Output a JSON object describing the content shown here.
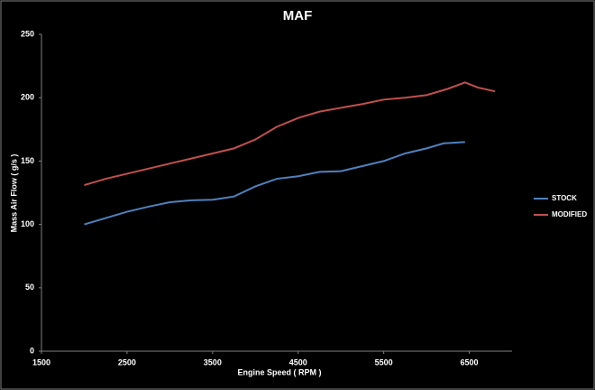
{
  "chart_data": {
    "type": "line",
    "title": "MAF",
    "x_label": "Engine Speed ( RPM )",
    "y_label": "Mass Air Flow ( g/s )",
    "xlim": [
      1500,
      7000
    ],
    "xticks": [
      1500,
      2500,
      3500,
      4500,
      5500,
      6500
    ],
    "ylim": [
      0,
      250
    ],
    "yticks": [
      0,
      50,
      100,
      150,
      200,
      250
    ],
    "legend": "right",
    "grid": false,
    "series": [
      {
        "name": "STOCK",
        "color": "#4f81bd",
        "x": [
          2000,
          2250,
          2500,
          2750,
          3000,
          3250,
          3500,
          3750,
          4000,
          4250,
          4500,
          4750,
          5000,
          5250,
          5500,
          5750,
          6000,
          6200,
          6450
        ],
        "values": [
          100,
          105,
          110,
          114,
          117.5,
          119,
          119.5,
          122,
          130,
          136,
          138,
          141.5,
          142,
          146,
          150,
          156,
          160,
          164,
          165
        ]
      },
      {
        "name": "MODIFIED",
        "color": "#c0504d",
        "x": [
          2000,
          2250,
          2500,
          2750,
          3000,
          3250,
          3500,
          3750,
          4000,
          4250,
          4500,
          4750,
          5000,
          5250,
          5500,
          5750,
          6000,
          6250,
          6450,
          6600,
          6800
        ],
        "values": [
          131,
          136,
          140,
          144,
          148,
          152,
          156,
          160,
          167,
          177,
          184,
          189,
          192,
          195,
          198.5,
          200,
          202,
          207,
          212,
          208,
          205
        ]
      }
    ]
  }
}
